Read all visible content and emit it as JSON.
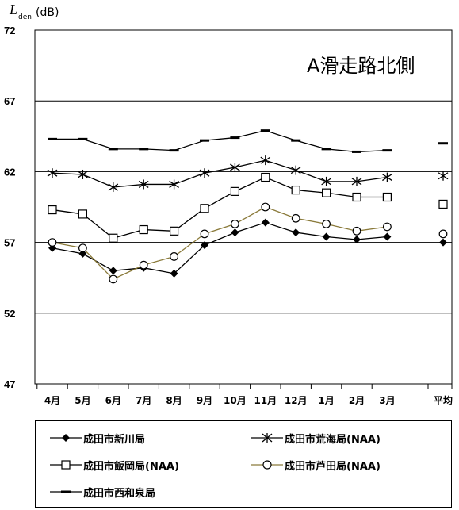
{
  "chart_data": {
    "type": "line",
    "title": "A滑走路北側",
    "ylabel_main": "L",
    "ylabel_sub": "den",
    "ylabel_unit": "(dB)",
    "ylim": [
      47,
      72
    ],
    "yticks": [
      47,
      52,
      57,
      62,
      67,
      72
    ],
    "grid": "horizontal",
    "categories": [
      "4月",
      "5月",
      "6月",
      "7月",
      "8月",
      "9月",
      "10月",
      "11月",
      "12月",
      "1月",
      "2月",
      "3月"
    ],
    "average_label": "平均",
    "series": [
      {
        "name": "成田市新川局",
        "marker": "diamond-filled",
        "values": [
          56.6,
          56.2,
          55.0,
          55.2,
          54.8,
          56.8,
          57.7,
          58.4,
          57.7,
          57.4,
          57.2,
          57.4
        ],
        "average": 57.0
      },
      {
        "name": "成田市荒海局(NAA)",
        "marker": "asterisk",
        "values": [
          61.9,
          61.8,
          60.9,
          61.1,
          61.1,
          61.9,
          62.3,
          62.8,
          62.1,
          61.3,
          61.3,
          61.6
        ],
        "average": 61.7
      },
      {
        "name": "成田市飯岡局(NAA)",
        "marker": "square-open",
        "values": [
          59.3,
          59.0,
          57.3,
          57.9,
          57.8,
          59.4,
          60.6,
          61.6,
          60.7,
          60.5,
          60.2,
          60.2
        ],
        "average": 59.7
      },
      {
        "name": "成田市芦田局(NAA)",
        "marker": "circle-open",
        "values": [
          57.0,
          56.6,
          54.4,
          55.4,
          56.0,
          57.6,
          58.3,
          59.5,
          58.7,
          58.3,
          57.8,
          58.1
        ],
        "average": 57.6
      },
      {
        "name": "成田市西和泉局",
        "marker": "dash",
        "values": [
          64.3,
          64.3,
          63.6,
          63.6,
          63.5,
          64.2,
          64.4,
          64.9,
          64.2,
          63.6,
          63.4,
          63.5
        ],
        "average": 64.0
      }
    ]
  },
  "colors": {
    "olive_line": "#8a7a3a"
  }
}
